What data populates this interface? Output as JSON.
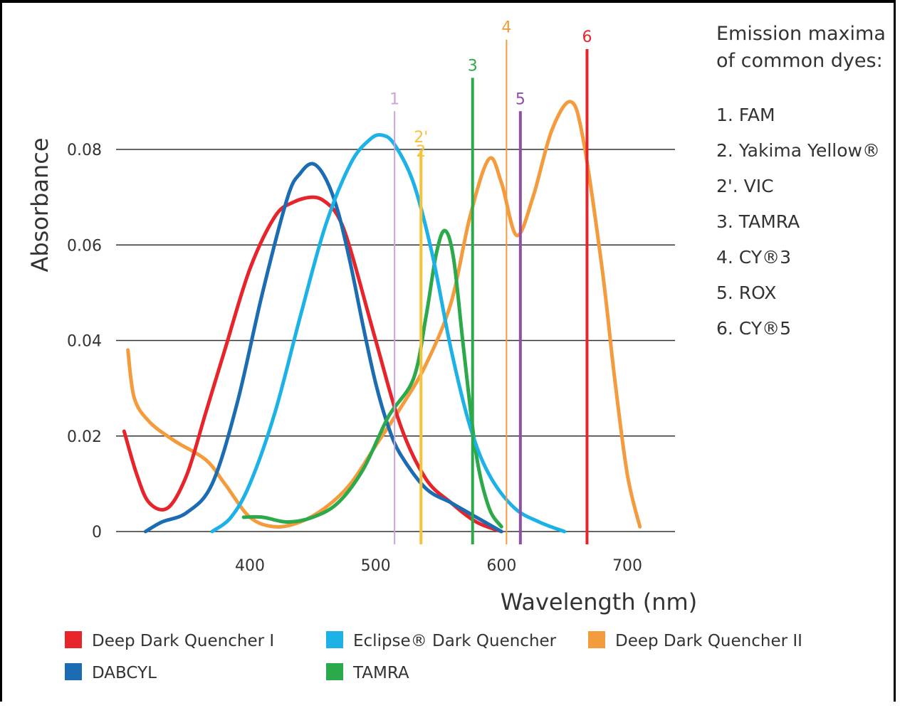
{
  "chart_data": {
    "type": "line",
    "xlabel": "Wavelength (nm)",
    "ylabel": "Absorbance",
    "xlim": [
      300,
      720
    ],
    "ylim": [
      0,
      0.09
    ],
    "x_ticks": [
      "400",
      "500",
      "600",
      "700"
    ],
    "x_tick_values": [
      400,
      500,
      600,
      700
    ],
    "y_ticks": [
      "0",
      "0.02",
      "0.04",
      "0.06",
      "0.08"
    ],
    "y_tick_values": [
      0,
      0.02,
      0.04,
      0.06,
      0.08
    ],
    "grid": "horizontal",
    "series": [
      {
        "name": "Deep Dark Quencher I",
        "color": "#e8242b",
        "x": [
          300,
          310,
          320,
          335,
          350,
          365,
          380,
          400,
          420,
          435,
          450,
          460,
          470,
          480,
          500,
          520,
          540,
          560,
          580,
          600
        ],
        "y": [
          0.021,
          0.012,
          0.006,
          0.005,
          0.012,
          0.025,
          0.038,
          0.055,
          0.066,
          0.069,
          0.07,
          0.069,
          0.066,
          0.059,
          0.04,
          0.022,
          0.011,
          0.006,
          0.002,
          0.0
        ]
      },
      {
        "name": "DABCYL",
        "color": "#1b6cb3",
        "x": [
          317,
          330,
          350,
          370,
          390,
          410,
          430,
          440,
          450,
          460,
          470,
          480,
          490,
          500,
          510,
          520,
          540,
          560,
          580,
          600
        ],
        "y": [
          0.0,
          0.002,
          0.004,
          0.01,
          0.027,
          0.05,
          0.07,
          0.075,
          0.077,
          0.074,
          0.067,
          0.056,
          0.043,
          0.031,
          0.022,
          0.016,
          0.009,
          0.006,
          0.003,
          0.0
        ]
      },
      {
        "name": "Eclipse® Dark Quencher",
        "color": "#1cb2e8",
        "x": [
          370,
          385,
          400,
          420,
          440,
          460,
          480,
          495,
          505,
          515,
          530,
          545,
          560,
          575,
          590,
          610,
          630,
          650
        ],
        "y": [
          0.0,
          0.003,
          0.01,
          0.025,
          0.045,
          0.064,
          0.077,
          0.082,
          0.083,
          0.081,
          0.073,
          0.058,
          0.038,
          0.022,
          0.012,
          0.005,
          0.002,
          0.0
        ]
      },
      {
        "name": "Deep Dark Quencher II",
        "color": "#f49b3d",
        "x": [
          303,
          308,
          320,
          340,
          365,
          380,
          400,
          420,
          440,
          460,
          480,
          500,
          520,
          540,
          560,
          575,
          590,
          600,
          612,
          625,
          640,
          655,
          665,
          680,
          690,
          700,
          710
        ],
        "y": [
          0.038,
          0.028,
          0.023,
          0.019,
          0.015,
          0.01,
          0.003,
          0.001,
          0.002,
          0.005,
          0.01,
          0.018,
          0.026,
          0.035,
          0.048,
          0.066,
          0.078,
          0.073,
          0.062,
          0.07,
          0.084,
          0.09,
          0.082,
          0.055,
          0.032,
          0.012,
          0.001
        ]
      },
      {
        "name": "TAMRA",
        "color": "#2ca94a",
        "x": [
          395,
          410,
          430,
          450,
          470,
          490,
          510,
          530,
          540,
          548,
          555,
          562,
          570,
          580,
          590,
          600
        ],
        "y": [
          0.003,
          0.003,
          0.002,
          0.003,
          0.006,
          0.013,
          0.024,
          0.032,
          0.045,
          0.058,
          0.063,
          0.057,
          0.038,
          0.016,
          0.005,
          0.001
        ]
      }
    ],
    "emission_lines": [
      {
        "label": "1",
        "wavelength": 515,
        "top": 0.088,
        "color": "#c9a4d6",
        "width": 2
      },
      {
        "label": "2'",
        "wavelength": 536,
        "top": 0.08,
        "color": "#f7c23a",
        "width": 4
      },
      {
        "label": "2",
        "wavelength": 536,
        "top": 0.077,
        "color": "#f7c23a",
        "width": 4
      },
      {
        "label": "3",
        "wavelength": 577,
        "top": 0.095,
        "color": "#2ca94a",
        "width": 4
      },
      {
        "label": "4",
        "wavelength": 604,
        "top": 0.103,
        "color": "#f49b3d",
        "width": 2
      },
      {
        "label": "5",
        "wavelength": 615,
        "top": 0.088,
        "color": "#8e4fa6",
        "width": 4
      },
      {
        "label": "6",
        "wavelength": 668,
        "top": 0.101,
        "color": "#e8242b",
        "width": 4
      }
    ],
    "dyes_panel": {
      "title_line1": "Emission maxima",
      "title_line2": "of common dyes:",
      "items": [
        "1. FAM",
        "2. Yakima Yellow®",
        "2'. VIC",
        "3. TAMRA",
        "4. CY®3",
        "5. ROX",
        "6. CY®5"
      ]
    },
    "legend": [
      {
        "label": "Deep Dark Quencher I",
        "color": "#e8242b"
      },
      {
        "label": "Eclipse® Dark Quencher",
        "color": "#1cb2e8"
      },
      {
        "label": "Deep Dark Quencher II",
        "color": "#f49b3d"
      },
      {
        "label": "DABCYL",
        "color": "#1b6cb3"
      },
      {
        "label": "TAMRA",
        "color": "#2ca94a"
      }
    ]
  }
}
